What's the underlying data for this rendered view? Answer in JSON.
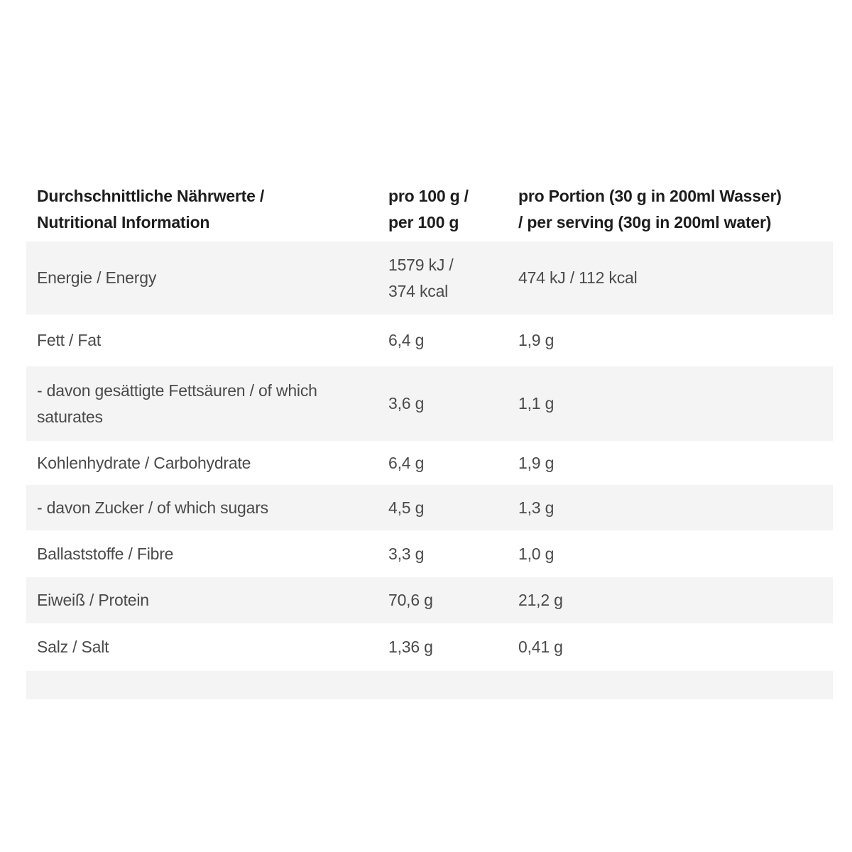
{
  "table": {
    "header": {
      "nutrients": "Durchschnittliche Nährwerte /\nNutritional Information",
      "per_100g": "pro 100 g /\nper 100 g",
      "per_serving": "pro Portion (30 g in 200ml Wasser)\n/ per serving (30g in 200ml water)"
    },
    "rows": [
      {
        "label": "Energie / Energy",
        "per_100g": "1579 kJ /\n374 kcal",
        "per_serving": "474 kJ / 112 kcal"
      },
      {
        "label": "Fett / Fat",
        "per_100g": "6,4 g",
        "per_serving": "1,9 g"
      },
      {
        "label": "- davon gesättigte Fettsäuren / of which\nsaturates",
        "per_100g": "3,6 g",
        "per_serving": "1,1 g"
      },
      {
        "label": "Kohlenhydrate / Carbohydrate",
        "per_100g": "6,4 g",
        "per_serving": "1,9 g"
      },
      {
        "label": "- davon Zucker / of which sugars",
        "per_100g": "4,5 g",
        "per_serving": "1,3 g"
      },
      {
        "label": "Ballaststoffe / Fibre",
        "per_100g": "3,3 g",
        "per_serving": "1,0 g"
      },
      {
        "label": "Eiweiß / Protein",
        "per_100g": "70,6 g",
        "per_serving": "21,2 g"
      },
      {
        "label": "Salz / Salt",
        "per_100g": "1,36 g",
        "per_serving": "0,41 g"
      },
      {
        "label": "",
        "per_100g": "",
        "per_serving": ""
      }
    ],
    "colors": {
      "row_shade": "#f4f4f4",
      "header_text": "#1d1d1d",
      "body_text": "#4a4a4a",
      "page_background": "#ffffff"
    }
  }
}
